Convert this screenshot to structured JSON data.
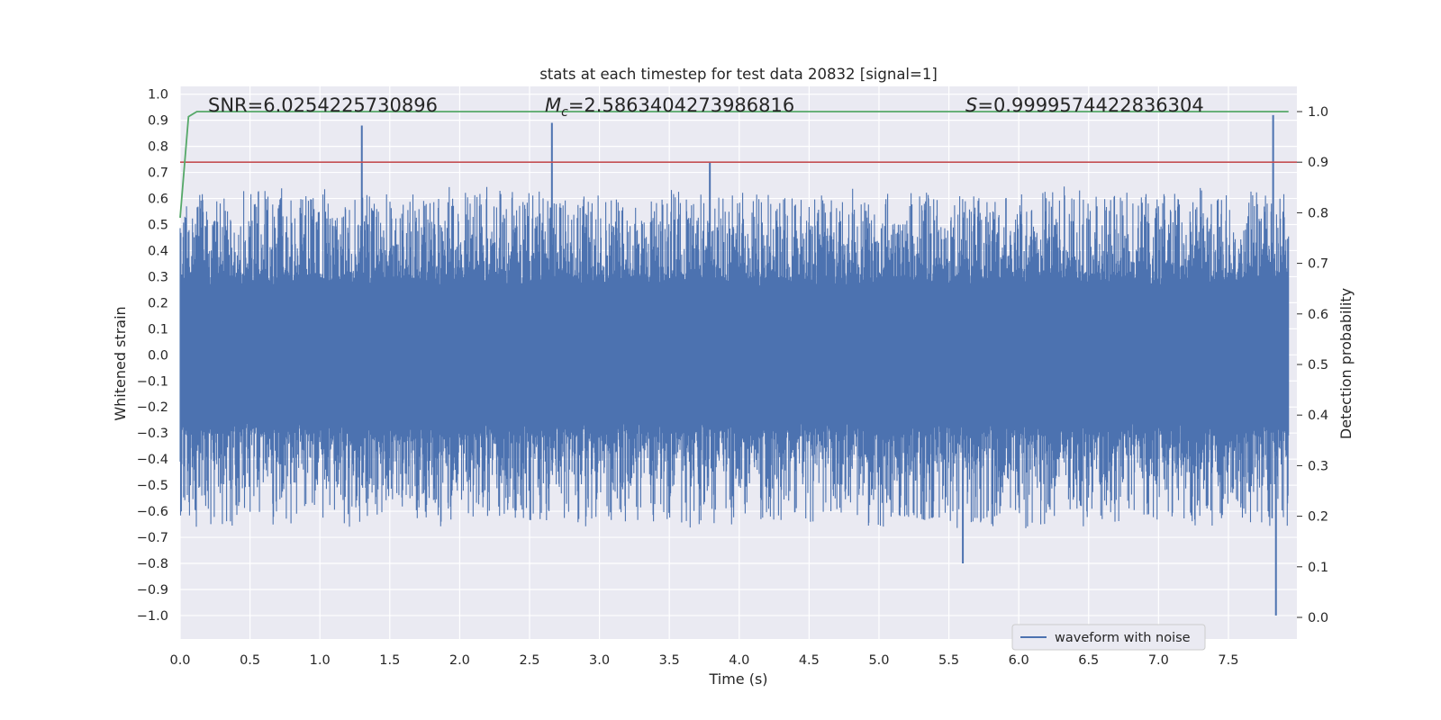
{
  "chart_data": {
    "type": "line",
    "title": "stats at each timestep for test data 20832 [signal=1]",
    "xlabel": "Time (s)",
    "ylabel_left": "Whitened strain",
    "ylabel_right": "Detection probability",
    "xlim": [
      0.0,
      7.99
    ],
    "ylim_left": [
      -1.09,
      1.03
    ],
    "ylim_right": [
      0.0,
      1.0
    ],
    "xticks": [
      "0.0",
      "0.5",
      "1.0",
      "1.5",
      "2.0",
      "2.5",
      "3.0",
      "3.5",
      "4.0",
      "4.5",
      "5.0",
      "5.5",
      "6.0",
      "6.5",
      "7.0",
      "7.5"
    ],
    "yticks_left": [
      "1.0",
      "0.9",
      "0.8",
      "0.7",
      "0.6",
      "0.5",
      "0.4",
      "0.3",
      "0.2",
      "0.1",
      "0.0",
      "−0.1",
      "−0.2",
      "−0.3",
      "−0.4",
      "−0.5",
      "−0.6",
      "−0.7",
      "−0.8",
      "−0.9",
      "−1.0"
    ],
    "yticks_right": [
      "1.0",
      "0.9",
      "0.8",
      "0.7",
      "0.6",
      "0.5",
      "0.4",
      "0.3",
      "0.2",
      "0.1",
      "0.0"
    ],
    "grid": true,
    "legend": {
      "entries": [
        "waveform with noise"
      ],
      "placement": "lower-right"
    },
    "annotations": {
      "snr": "SNR=6.0254225730896",
      "mc_symbol": "M",
      "mc_sub": "c",
      "mc_value": "=2.5863404273986816",
      "s_symbol": "S",
      "s_value": "=0.9999574422836304"
    },
    "threshold": {
      "value": 0.9,
      "color": "#c44e52"
    },
    "colors": {
      "waveform": "#4c72b0",
      "probability": "#55a868",
      "threshold": "#c44e52",
      "axes_bg": "#eaeaf2"
    },
    "peaks": [
      {
        "x": 1.3,
        "y": 0.88
      },
      {
        "x": 2.66,
        "y": 0.89
      },
      {
        "x": 3.79,
        "y": 0.74
      },
      {
        "x": 5.6,
        "y": -0.8
      },
      {
        "x": 7.82,
        "y": 0.92
      },
      {
        "x": 7.84,
        "y": -1.0
      }
    ],
    "probability_series": {
      "x": [
        0.0,
        0.06,
        0.12,
        0.2,
        1.0,
        2.0,
        3.0,
        4.0,
        5.0,
        6.0,
        7.0,
        7.93
      ],
      "y": [
        0.79,
        0.99,
        1.0,
        1.0,
        1.0,
        1.0,
        1.0,
        1.0,
        1.0,
        1.0,
        1.0,
        1.0
      ]
    }
  }
}
